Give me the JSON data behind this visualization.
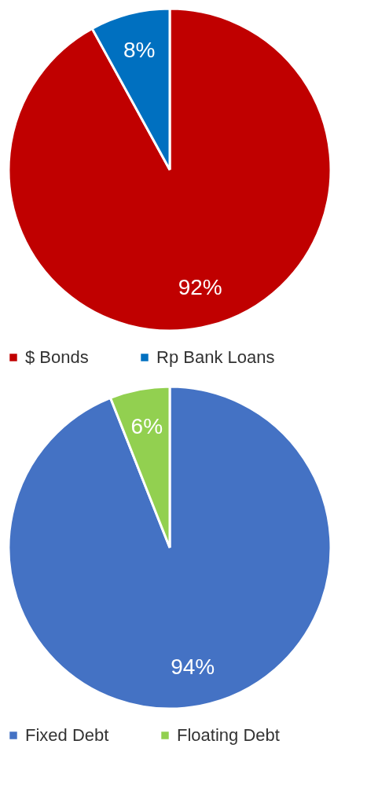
{
  "chart_data": [
    {
      "type": "pie",
      "categories": [
        "$ Bonds",
        "Rp Bank Loans"
      ],
      "values": [
        92,
        8
      ],
      "colors": [
        "#c00000",
        "#0070c0"
      ],
      "value_labels": [
        "92%",
        "8%"
      ],
      "legend": "bottom"
    },
    {
      "type": "pie",
      "categories": [
        "Fixed Debt",
        "Floating Debt"
      ],
      "values": [
        94,
        6
      ],
      "colors": [
        "#4472c4",
        "#92d050"
      ],
      "value_labels": [
        "94%",
        "6%"
      ],
      "legend": "bottom"
    }
  ]
}
